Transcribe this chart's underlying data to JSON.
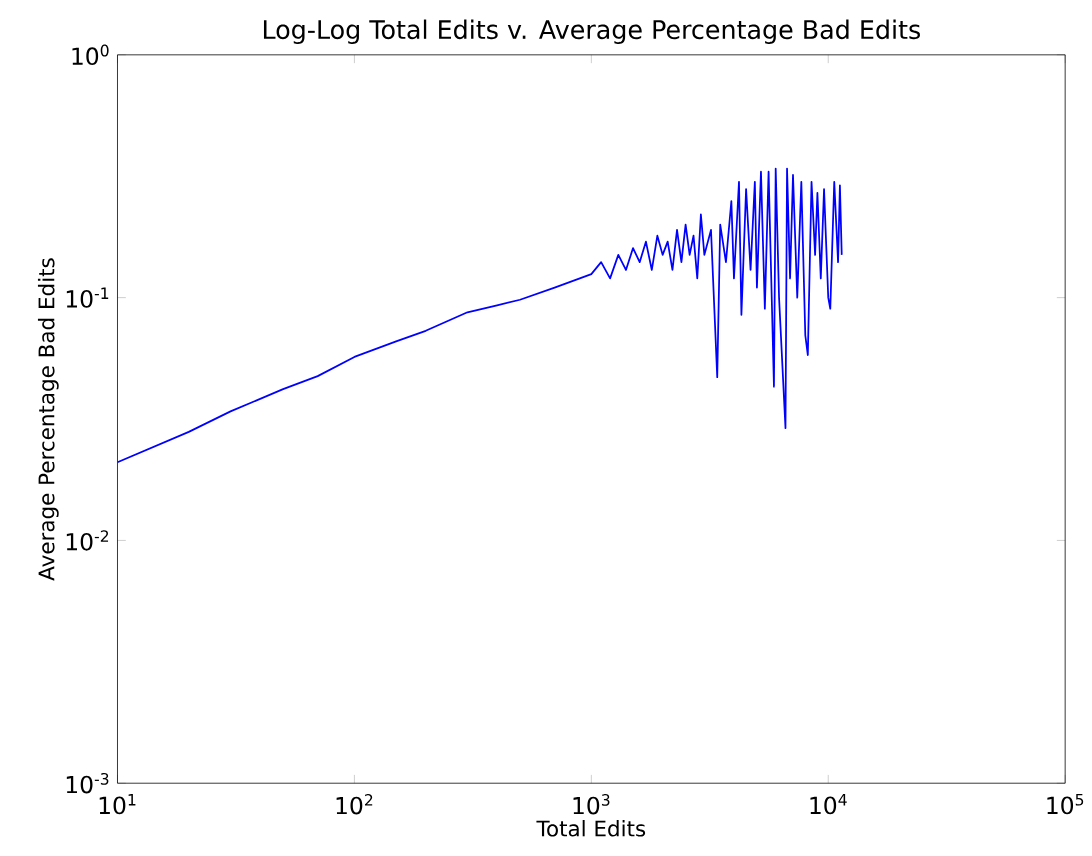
{
  "chart_data": {
    "type": "line",
    "title": "Log-Log Total Edits v. Average Percentage Bad Edits",
    "xlabel": "Total Edits",
    "ylabel": "Average Percentage Bad Edits",
    "log": "xy",
    "grid": false,
    "marker": "none",
    "line_style": "solid",
    "xlim": [
      10,
      100000
    ],
    "ylim": [
      0.001,
      1
    ],
    "xticks": [
      {
        "value": 10,
        "label": "10$^{1}$"
      },
      {
        "value": 100,
        "label": "10$^{2}$"
      },
      {
        "value": 1000,
        "label": "10$^{3}$"
      },
      {
        "value": 10000,
        "label": "10$^{4}$"
      },
      {
        "value": 100000,
        "label": "10$^{5}$"
      }
    ],
    "yticks": [
      {
        "value": 0.001,
        "label": "10$^{-3}$"
      },
      {
        "value": 0.01,
        "label": "10$^{-2}$"
      },
      {
        "value": 0.1,
        "label": "10$^{-1}$"
      },
      {
        "value": 1,
        "label": "10$^{0}$"
      }
    ],
    "series": [
      {
        "color": "#0000ff",
        "x": [
          10,
          20,
          30,
          50,
          70,
          100,
          150,
          200,
          300,
          400,
          500,
          700,
          1000,
          1100,
          1200,
          1300,
          1400,
          1500,
          1600,
          1700,
          1800,
          1900,
          2000,
          2100,
          2200,
          2300,
          2400,
          2500,
          2600,
          2700,
          2800,
          2900,
          3000,
          3200,
          3400,
          3500,
          3700,
          3900,
          4000,
          4200,
          4300,
          4500,
          4700,
          4900,
          5000,
          5200,
          5400,
          5600,
          5900,
          6000,
          6200,
          6600,
          6700,
          6900,
          7100,
          7400,
          7700,
          8000,
          8200,
          8500,
          8800,
          9000,
          9300,
          9600,
          10000,
          10200,
          10600,
          11000,
          11200,
          11400
        ],
        "values": [
          0.021,
          0.028,
          0.034,
          0.042,
          0.0475,
          0.057,
          0.066,
          0.073,
          0.087,
          0.093,
          0.098,
          0.11,
          0.125,
          0.14,
          0.12,
          0.15,
          0.13,
          0.16,
          0.14,
          0.17,
          0.13,
          0.18,
          0.15,
          0.17,
          0.13,
          0.19,
          0.14,
          0.2,
          0.15,
          0.18,
          0.12,
          0.22,
          0.15,
          0.19,
          0.047,
          0.2,
          0.14,
          0.25,
          0.12,
          0.3,
          0.085,
          0.28,
          0.13,
          0.3,
          0.11,
          0.33,
          0.09,
          0.33,
          0.043,
          0.34,
          0.1,
          0.029,
          0.34,
          0.12,
          0.32,
          0.1,
          0.3,
          0.07,
          0.058,
          0.3,
          0.15,
          0.27,
          0.12,
          0.28,
          0.1,
          0.09,
          0.3,
          0.14,
          0.29,
          0.15
        ]
      }
    ]
  }
}
